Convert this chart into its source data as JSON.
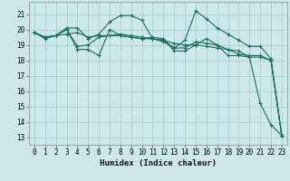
{
  "title": "",
  "xlabel": "Humidex (Indice chaleur)",
  "xlim": [
    -0.5,
    23.5
  ],
  "ylim": [
    12.5,
    21.8
  ],
  "yticks": [
    13,
    14,
    15,
    16,
    17,
    18,
    19,
    20,
    21
  ],
  "xticks": [
    0,
    1,
    2,
    3,
    4,
    5,
    6,
    7,
    8,
    9,
    10,
    11,
    12,
    13,
    14,
    15,
    16,
    17,
    18,
    19,
    20,
    21,
    22,
    23
  ],
  "bg_color": "#cce8e8",
  "grid_color": "#aacece",
  "line_color": "#1a6e5e",
  "series": [
    [
      19.8,
      19.5,
      19.6,
      20.0,
      18.7,
      18.7,
      18.3,
      20.0,
      19.6,
      19.5,
      19.4,
      19.5,
      19.4,
      18.6,
      18.6,
      19.0,
      19.4,
      19.0,
      18.3,
      18.3,
      18.2,
      15.2,
      13.8,
      13.1
    ],
    [
      19.8,
      19.5,
      19.6,
      20.1,
      20.1,
      19.4,
      19.7,
      20.5,
      20.9,
      20.9,
      20.6,
      19.4,
      19.3,
      18.8,
      19.3,
      21.2,
      20.7,
      20.1,
      19.7,
      19.3,
      18.9,
      18.9,
      18.1,
      13.1
    ],
    [
      19.8,
      19.4,
      19.6,
      19.7,
      19.8,
      19.5,
      19.6,
      19.6,
      19.6,
      19.5,
      19.4,
      19.4,
      19.3,
      19.1,
      19.0,
      19.0,
      18.9,
      18.8,
      18.7,
      18.6,
      18.2,
      18.2,
      18.0,
      13.1
    ],
    [
      19.8,
      19.5,
      19.6,
      20.0,
      18.9,
      19.0,
      19.5,
      19.6,
      19.7,
      19.6,
      19.5,
      19.4,
      19.2,
      18.8,
      18.8,
      19.2,
      19.1,
      19.0,
      18.7,
      18.4,
      18.3,
      18.3,
      18.0,
      13.1
    ]
  ],
  "tick_fontsize": 5.5,
  "xlabel_fontsize": 6.5
}
